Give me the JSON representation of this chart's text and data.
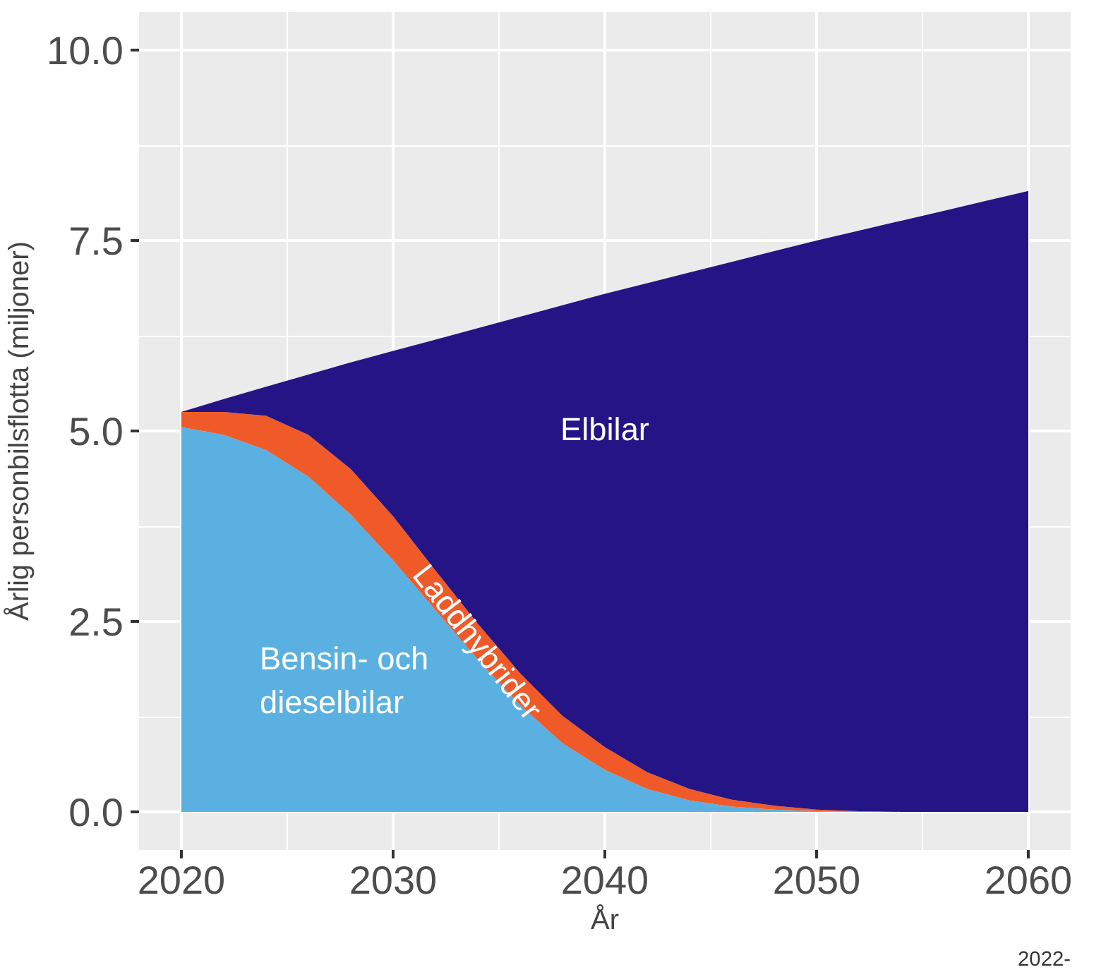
{
  "chart_data": {
    "type": "area",
    "stacked": true,
    "xlabel": "År",
    "ylabel": "Årlig personbilsflotta (miljoner)",
    "x": [
      2020,
      2022,
      2024,
      2026,
      2028,
      2030,
      2032,
      2034,
      2036,
      2038,
      2040,
      2042,
      2044,
      2046,
      2048,
      2050,
      2052,
      2054,
      2056,
      2058,
      2060
    ],
    "series": [
      {
        "name": "Bensin- och dieselbilar",
        "color": "#5ab0e0",
        "values": [
          5.05,
          4.95,
          4.75,
          4.4,
          3.9,
          3.3,
          2.65,
          2.0,
          1.4,
          0.9,
          0.55,
          0.3,
          0.15,
          0.07,
          0.03,
          0.01,
          0,
          0,
          0,
          0,
          0
        ]
      },
      {
        "name": "Laddhybrider",
        "color": "#f05a28",
        "values": [
          0.2,
          0.3,
          0.45,
          0.55,
          0.6,
          0.58,
          0.52,
          0.47,
          0.42,
          0.36,
          0.3,
          0.22,
          0.15,
          0.09,
          0.05,
          0.02,
          0.01,
          0,
          0,
          0,
          0
        ]
      },
      {
        "name": "Elbilar",
        "color": "#241486",
        "values": [
          0,
          0.17,
          0.38,
          0.79,
          1.4,
          2.17,
          3.03,
          3.88,
          4.68,
          5.39,
          5.95,
          6.42,
          6.78,
          7.06,
          7.28,
          7.47,
          7.62,
          7.76,
          7.89,
          8.02,
          8.15
        ]
      }
    ],
    "xlim": [
      2018,
      2062
    ],
    "ylim": [
      -0.5,
      10.5
    ],
    "xticks": [
      2020,
      2030,
      2040,
      2050,
      2060
    ],
    "yticks": [
      {
        "value": 0,
        "label": "0.0"
      },
      {
        "value": 2.5,
        "label": "2.5"
      },
      {
        "value": 5,
        "label": "5.0"
      },
      {
        "value": 7.5,
        "label": "7.5"
      },
      {
        "value": 10,
        "label": "10.0"
      }
    ],
    "grid": true,
    "annotations": [
      "2022-"
    ]
  }
}
